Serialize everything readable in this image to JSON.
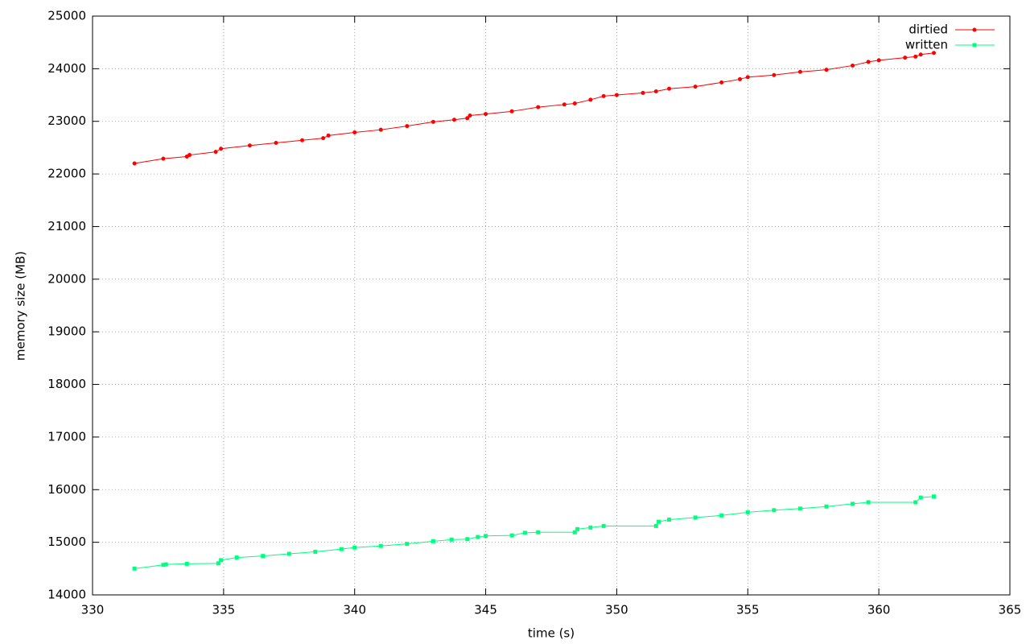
{
  "chart_data": {
    "type": "line",
    "xlabel": "time (s)",
    "ylabel": "memory size (MB)",
    "xlim": [
      330,
      365
    ],
    "xticks": [
      330,
      335,
      340,
      345,
      350,
      355,
      360,
      365
    ],
    "ylim": [
      14000,
      25000
    ],
    "yticks": [
      14000,
      15000,
      16000,
      17000,
      18000,
      19000,
      20000,
      21000,
      22000,
      23000,
      24000,
      25000
    ],
    "grid": true,
    "legend": "top-right",
    "series": [
      {
        "name": "dirtied",
        "color": "#ff0000",
        "marker": "circle",
        "x": [
          331.6,
          332.7,
          333.6,
          333.7,
          334.7,
          334.9,
          336,
          337,
          338,
          338.8,
          339,
          340,
          341,
          342,
          343,
          343.8,
          344.3,
          344.4,
          345,
          346,
          347,
          348,
          348.4,
          349,
          349.5,
          350,
          351,
          351.5,
          352,
          353,
          354,
          354.7,
          355,
          356,
          357,
          358,
          359,
          359.6,
          360,
          361,
          361.4,
          361.6,
          362.1
        ],
        "values": [
          22200,
          22290,
          22330,
          22360,
          22420,
          22480,
          22540,
          22590,
          22640,
          22680,
          22730,
          22790,
          22840,
          22910,
          22990,
          23030,
          23060,
          23110,
          23140,
          23190,
          23270,
          23320,
          23340,
          23410,
          23480,
          23500,
          23540,
          23570,
          23620,
          23660,
          23740,
          23800,
          23840,
          23880,
          23940,
          23980,
          24060,
          24130,
          24160,
          24210,
          24230,
          24270,
          24300
        ]
      },
      {
        "name": "written",
        "color": "#00ff7f",
        "marker": "square",
        "x": [
          331.6,
          332.7,
          332.8,
          333.6,
          334.8,
          334.9,
          335.5,
          336.5,
          337.5,
          338.5,
          339.5,
          340,
          341,
          342,
          343,
          343.7,
          344.3,
          344.7,
          345,
          346,
          346.5,
          347,
          348.4,
          348.5,
          349,
          349.5,
          351.5,
          351.6,
          352,
          353,
          354,
          355,
          356,
          357,
          358,
          359,
          359.6,
          361.4,
          361.6,
          362.1
        ],
        "values": [
          14500,
          14570,
          14580,
          14590,
          14600,
          14660,
          14710,
          14740,
          14780,
          14820,
          14870,
          14900,
          14930,
          14970,
          15020,
          15050,
          15060,
          15100,
          15120,
          15130,
          15180,
          15190,
          15190,
          15250,
          15280,
          15310,
          15310,
          15390,
          15430,
          15470,
          15510,
          15570,
          15610,
          15640,
          15680,
          15730,
          15760,
          15760,
          15850,
          15870
        ]
      }
    ]
  }
}
